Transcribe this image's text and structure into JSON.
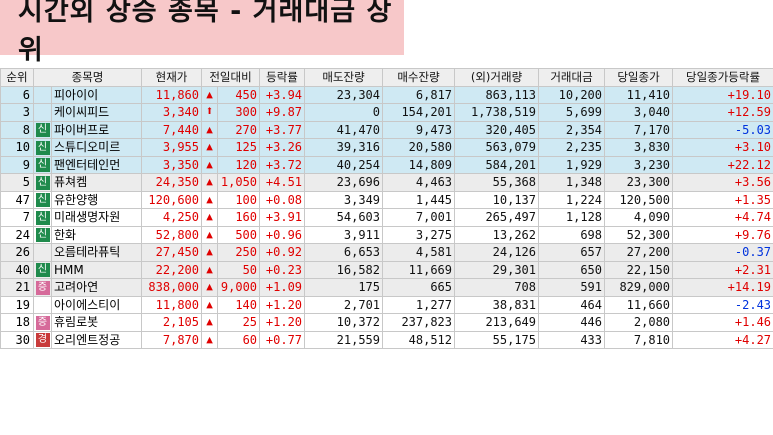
{
  "title": "시간외 상승 종목 - 거래대금 상위",
  "colors": {
    "up": "#e00000",
    "down": "#0033dd",
    "highlight": "#cfe9f3",
    "banner": "#f7c8c9"
  },
  "columns": [
    "순위",
    "종목명",
    "현재가",
    "전일대비",
    "등락률",
    "매도잔량",
    "매수잔량",
    "(외)거래량",
    "거래대금",
    "당일종가",
    "당일종가등락률"
  ],
  "rows": [
    {
      "rank": "6",
      "badge": "",
      "name": "피아이이",
      "price": "11,860",
      "dir": "tri",
      "change": "450",
      "rate": "+3.94",
      "sell": "23,304",
      "buy": "6,817",
      "volume": "863,113",
      "amount": "10,200",
      "close": "11,410",
      "close_rate": "+19.10",
      "close_dir": "up",
      "style": "hl"
    },
    {
      "rank": "3",
      "badge": "",
      "name": "케이씨피드",
      "price": "3,340",
      "dir": "arrow",
      "change": "300",
      "rate": "+9.87",
      "sell": "0",
      "buy": "154,201",
      "volume": "1,738,519",
      "amount": "5,699",
      "close": "3,040",
      "close_rate": "+12.59",
      "close_dir": "up",
      "style": "hl"
    },
    {
      "rank": "8",
      "badge": "신",
      "name": "파이버프로",
      "price": "7,440",
      "dir": "tri",
      "change": "270",
      "rate": "+3.77",
      "sell": "41,470",
      "buy": "9,473",
      "volume": "320,405",
      "amount": "2,354",
      "close": "7,170",
      "close_rate": "-5.03",
      "close_dir": "down",
      "style": "hl"
    },
    {
      "rank": "10",
      "badge": "신",
      "name": "스튜디오미르",
      "price": "3,955",
      "dir": "tri",
      "change": "125",
      "rate": "+3.26",
      "sell": "39,316",
      "buy": "20,580",
      "volume": "563,079",
      "amount": "2,235",
      "close": "3,830",
      "close_rate": "+3.10",
      "close_dir": "up",
      "style": "hl"
    },
    {
      "rank": "9",
      "badge": "신",
      "name": "팬엔터테인먼",
      "price": "3,350",
      "dir": "tri",
      "change": "120",
      "rate": "+3.72",
      "sell": "40,254",
      "buy": "14,809",
      "volume": "584,201",
      "amount": "1,929",
      "close": "3,230",
      "close_rate": "+22.12",
      "close_dir": "up",
      "style": "hl"
    },
    {
      "rank": "5",
      "badge": "신",
      "name": "퓨쳐켐",
      "price": "24,350",
      "dir": "tri",
      "change": "1,050",
      "rate": "+4.51",
      "sell": "23,696",
      "buy": "4,463",
      "volume": "55,368",
      "amount": "1,348",
      "close": "23,300",
      "close_rate": "+3.56",
      "close_dir": "up",
      "style": "grey"
    },
    {
      "rank": "47",
      "badge": "신",
      "name": "유한양행",
      "price": "120,600",
      "dir": "tri",
      "change": "100",
      "rate": "+0.08",
      "sell": "3,349",
      "buy": "1,445",
      "volume": "10,137",
      "amount": "1,224",
      "close": "120,500",
      "close_rate": "+1.35",
      "close_dir": "up",
      "style": "plain"
    },
    {
      "rank": "7",
      "badge": "신",
      "name": "미래생명자원",
      "price": "4,250",
      "dir": "tri",
      "change": "160",
      "rate": "+3.91",
      "sell": "54,603",
      "buy": "7,001",
      "volume": "265,497",
      "amount": "1,128",
      "close": "4,090",
      "close_rate": "+4.74",
      "close_dir": "up",
      "style": "plain"
    },
    {
      "rank": "24",
      "badge": "신",
      "name": "한화",
      "price": "52,800",
      "dir": "tri",
      "change": "500",
      "rate": "+0.96",
      "sell": "3,911",
      "buy": "3,275",
      "volume": "13,262",
      "amount": "698",
      "close": "52,300",
      "close_rate": "+9.76",
      "close_dir": "up",
      "style": "plain"
    },
    {
      "rank": "26",
      "badge": "",
      "name": "오름테라퓨틱",
      "price": "27,450",
      "dir": "tri",
      "change": "250",
      "rate": "+0.92",
      "sell": "6,653",
      "buy": "4,581",
      "volume": "24,126",
      "amount": "657",
      "close": "27,200",
      "close_rate": "-0.37",
      "close_dir": "down",
      "style": "grey"
    },
    {
      "rank": "40",
      "badge": "신",
      "name": "HMM",
      "price": "22,200",
      "dir": "tri",
      "change": "50",
      "rate": "+0.23",
      "sell": "16,582",
      "buy": "11,669",
      "volume": "29,301",
      "amount": "650",
      "close": "22,150",
      "close_rate": "+2.31",
      "close_dir": "up",
      "style": "grey"
    },
    {
      "rank": "21",
      "badge": "증",
      "name": "고려아연",
      "price": "838,000",
      "dir": "tri",
      "change": "9,000",
      "rate": "+1.09",
      "sell": "175",
      "buy": "665",
      "volume": "708",
      "amount": "591",
      "close": "829,000",
      "close_rate": "+14.19",
      "close_dir": "up",
      "style": "grey"
    },
    {
      "rank": "19",
      "badge": "",
      "name": "아이에스티이",
      "price": "11,800",
      "dir": "tri",
      "change": "140",
      "rate": "+1.20",
      "sell": "2,701",
      "buy": "1,277",
      "volume": "38,831",
      "amount": "464",
      "close": "11,660",
      "close_rate": "-2.43",
      "close_dir": "down",
      "style": "plain"
    },
    {
      "rank": "18",
      "badge": "증",
      "name": "휴림로봇",
      "price": "2,105",
      "dir": "tri",
      "change": "25",
      "rate": "+1.20",
      "sell": "10,372",
      "buy": "237,823",
      "volume": "213,649",
      "amount": "446",
      "close": "2,080",
      "close_rate": "+1.46",
      "close_dir": "up",
      "style": "plain"
    },
    {
      "rank": "30",
      "badge": "경",
      "name": "오리엔트정공",
      "price": "7,870",
      "dir": "tri",
      "change": "60",
      "rate": "+0.77",
      "sell": "21,559",
      "buy": "48,512",
      "volume": "55,175",
      "amount": "433",
      "close": "7,810",
      "close_rate": "+4.27",
      "close_dir": "up",
      "style": "plain"
    }
  ]
}
